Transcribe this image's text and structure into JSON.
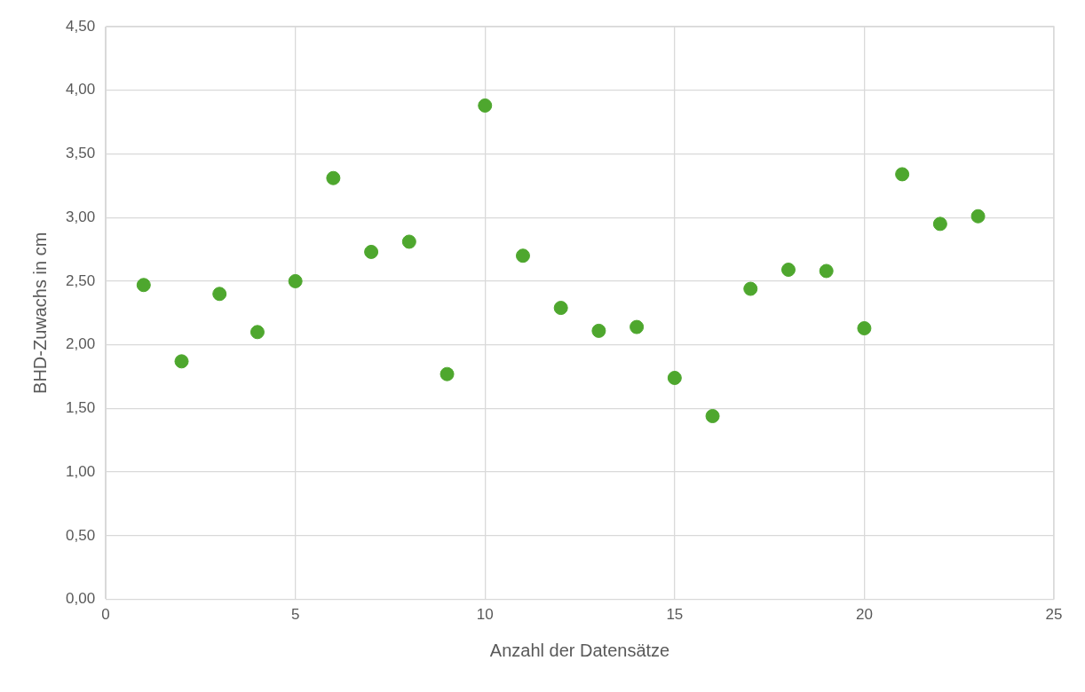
{
  "chart_data": {
    "type": "scatter",
    "xlabel": "Anzahl der Datensätze",
    "ylabel": "BHD-Zuwachs in cm",
    "x": [
      1,
      2,
      3,
      4,
      5,
      6,
      7,
      8,
      9,
      10,
      11,
      12,
      13,
      14,
      15,
      16,
      17,
      18,
      19,
      20,
      21,
      22,
      23
    ],
    "series": [
      {
        "color": "#4ea72e",
        "values": [
          2.47,
          1.87,
          2.4,
          2.1,
          2.5,
          3.31,
          2.73,
          2.81,
          1.77,
          3.88,
          2.7,
          2.29,
          2.11,
          2.14,
          1.74,
          1.44,
          2.44,
          2.59,
          2.58,
          2.13,
          3.34,
          2.95,
          3.01
        ]
      }
    ],
    "xlim": [
      0,
      25
    ],
    "xticks": [
      0,
      5,
      10,
      15,
      20,
      25
    ],
    "ylim": [
      0,
      4.5
    ],
    "yticks": [
      {
        "value": 0,
        "label": "0,00"
      },
      {
        "value": 0.5,
        "label": "0,50"
      },
      {
        "value": 1,
        "label": "1,00"
      },
      {
        "value": 1.5,
        "label": "1,50"
      },
      {
        "value": 2,
        "label": "2,00"
      },
      {
        "value": 2.5,
        "label": "2,50"
      },
      {
        "value": 3,
        "label": "3,00"
      },
      {
        "value": 3.5,
        "label": "3,50"
      },
      {
        "value": 4,
        "label": "4,00"
      },
      {
        "value": 4.5,
        "label": "4,50"
      }
    ],
    "grid": true,
    "legend": false,
    "marker": "circle"
  }
}
